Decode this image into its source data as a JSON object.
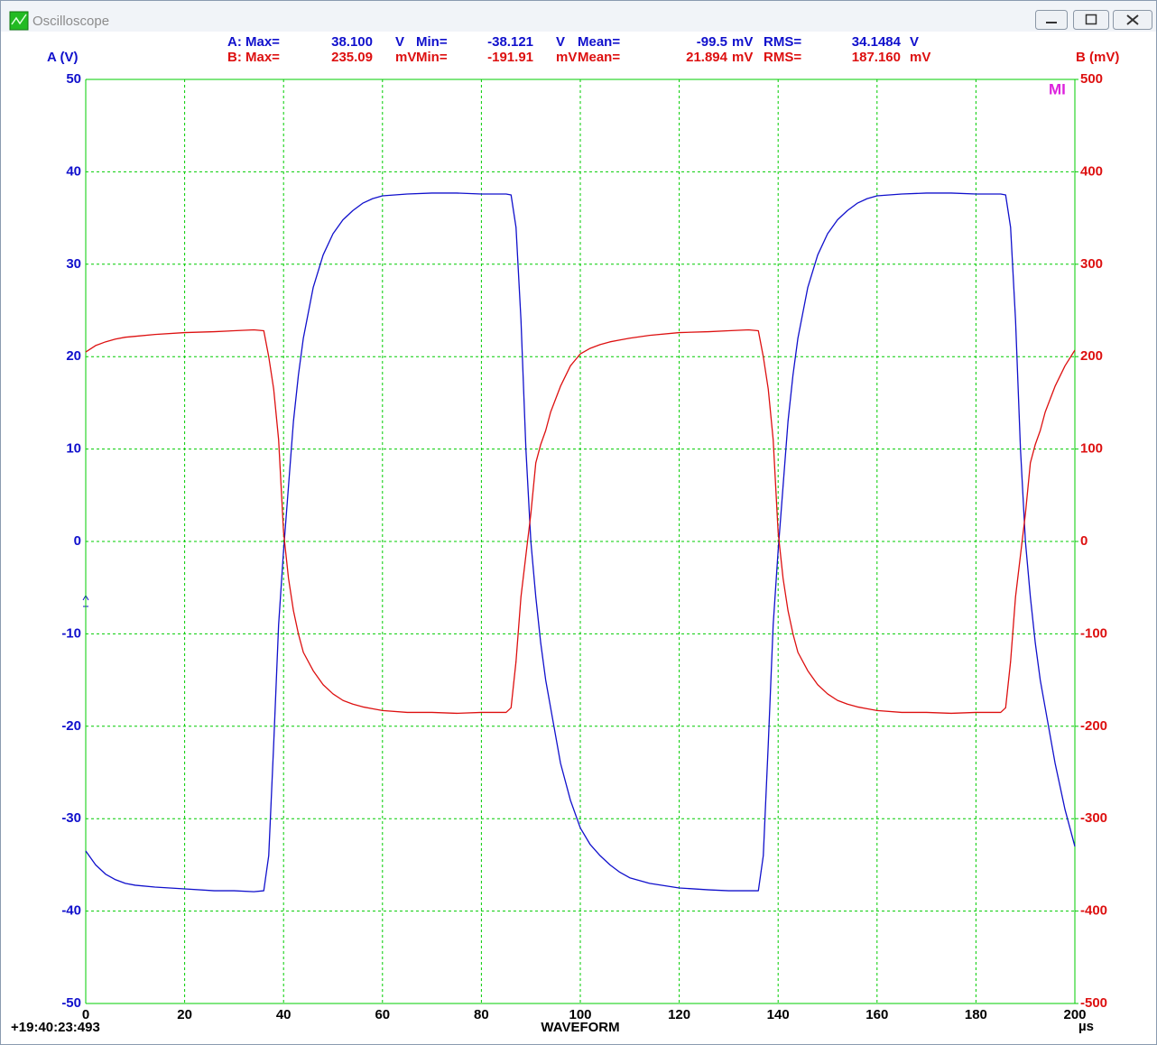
{
  "window": {
    "title": "Oscilloscope"
  },
  "stats": {
    "a": [
      "A: Max=",
      "38.100",
      "V",
      "Min=",
      "-38.121",
      "V",
      "Mean=",
      "-99.5",
      "mV",
      "RMS=",
      "34.1484",
      "V"
    ],
    "b": [
      "B: Max=",
      "235.09",
      "mV",
      "Min=",
      "-191.91",
      "mV",
      "Mean=",
      "21.894",
      "mV",
      "RMS=",
      "187.160",
      "mV"
    ]
  },
  "marker": "MI",
  "timestamp": "+19:40:23:493",
  "chart_data": {
    "type": "line",
    "x_label": "WAVEFORM",
    "x_unit": "µs",
    "y_label": "A (V)",
    "y2_label": "B (mV)",
    "xlim": [
      0,
      200
    ],
    "xticks": [
      0,
      20,
      40,
      60,
      80,
      100,
      120,
      140,
      160,
      180,
      200
    ],
    "ylim": [
      -50,
      50
    ],
    "yticks": [
      -50,
      -40,
      -30,
      -20,
      -10,
      0,
      10,
      20,
      30,
      40,
      50
    ],
    "y2lim": [
      -500,
      500
    ],
    "y2ticks": [
      -500,
      -400,
      -300,
      -200,
      -100,
      0,
      100,
      200,
      300,
      400,
      500
    ],
    "grid": true,
    "x": [
      0,
      2,
      4,
      6,
      8,
      10,
      14,
      20,
      26,
      30,
      34,
      36,
      37,
      38,
      39,
      40,
      41,
      42,
      43,
      44,
      46,
      48,
      50,
      52,
      54,
      56,
      58,
      60,
      65,
      70,
      75,
      80,
      85,
      86,
      87,
      88,
      89,
      90,
      91,
      92,
      93,
      94,
      96,
      98,
      100,
      102,
      104,
      106,
      108,
      110,
      114,
      120,
      126,
      130,
      134,
      136,
      137,
      138,
      139,
      140,
      141,
      142,
      143,
      144,
      146,
      148,
      150,
      152,
      154,
      156,
      158,
      160,
      165,
      170,
      175,
      180,
      185,
      186,
      187,
      188,
      189,
      190,
      191,
      192,
      193,
      194,
      196,
      198,
      200
    ],
    "series": [
      {
        "name": "A",
        "color": "#1010cc",
        "values": [
          -33.5,
          -35,
          -36,
          -36.6,
          -37,
          -37.2,
          -37.4,
          -37.6,
          -37.8,
          -37.8,
          -37.9,
          -37.8,
          -34,
          -22,
          -9,
          -1,
          6,
          13,
          18,
          22,
          27.5,
          31,
          33.3,
          34.8,
          35.8,
          36.6,
          37.1,
          37.4,
          37.6,
          37.7,
          37.7,
          37.6,
          37.6,
          37.5,
          34,
          24,
          10,
          0,
          -6,
          -11,
          -15,
          -18,
          -24,
          -28,
          -31,
          -32.8,
          -34,
          -35,
          -35.8,
          -36.4,
          -37,
          -37.5,
          -37.7,
          -37.8,
          -37.8,
          -37.8,
          -34,
          -22,
          -9,
          -1,
          6,
          13,
          18,
          22,
          27.5,
          31,
          33.3,
          34.8,
          35.8,
          36.6,
          37.1,
          37.4,
          37.6,
          37.7,
          37.7,
          37.6,
          37.6,
          37.5,
          34,
          24,
          10,
          0,
          -6,
          -11,
          -15,
          -18,
          -24,
          -29,
          -33
        ]
      },
      {
        "name": "B",
        "color": "#dd1010",
        "axis": "y2",
        "values": [
          205,
          212,
          216,
          219,
          221,
          222,
          224,
          226,
          227,
          228,
          229,
          228,
          200,
          165,
          110,
          10,
          -40,
          -75,
          -100,
          -120,
          -140,
          -155,
          -165,
          -172,
          -176,
          -179,
          -181,
          -183,
          -185,
          -185,
          -186,
          -185,
          -185,
          -180,
          -130,
          -60,
          -15,
          30,
          85,
          105,
          120,
          140,
          168,
          190,
          203,
          209,
          213,
          216,
          218,
          220,
          223,
          226,
          227,
          228,
          229,
          228,
          200,
          165,
          110,
          10,
          -40,
          -75,
          -100,
          -120,
          -140,
          -155,
          -165,
          -172,
          -176,
          -179,
          -181,
          -183,
          -185,
          -185,
          -186,
          -185,
          -185,
          -180,
          -130,
          -60,
          -15,
          30,
          85,
          105,
          120,
          140,
          168,
          190,
          207
        ]
      }
    ]
  }
}
